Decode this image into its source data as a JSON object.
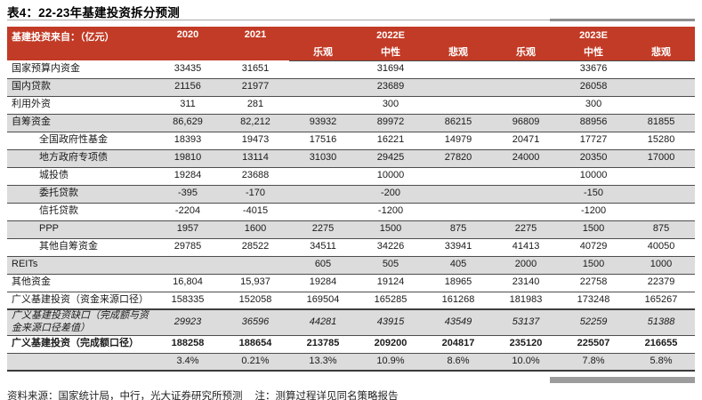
{
  "title": "表4：22-23年基建投资拆分预测",
  "colors": {
    "header_bg": "#C23B26",
    "row_shade": "#DCDCDC",
    "header_text": "#FFFFFF"
  },
  "table": {
    "header": {
      "label": "基建投资来自：（亿元）",
      "col_2020": "2020",
      "col_2021": "2021",
      "group_2022": "2022E",
      "group_2023": "2023E",
      "scenarios": [
        "乐观",
        "中性",
        "悲观",
        "乐观",
        "中性",
        "悲观"
      ]
    },
    "rows": [
      {
        "label": "国家预算内资金",
        "indent": false,
        "shaded": false,
        "values": [
          "33435",
          "31651",
          "",
          "31694",
          "",
          "",
          "33676",
          ""
        ]
      },
      {
        "label": "国内贷款",
        "indent": false,
        "shaded": true,
        "values": [
          "21156",
          "21977",
          "",
          "23689",
          "",
          "",
          "26058",
          ""
        ]
      },
      {
        "label": "利用外资",
        "indent": false,
        "shaded": false,
        "values": [
          "311",
          "281",
          "",
          "300",
          "",
          "",
          "300",
          ""
        ]
      },
      {
        "label": "自筹资金",
        "indent": false,
        "shaded": true,
        "values": [
          "86,629",
          "82,212",
          "93932",
          "89972",
          "86215",
          "96809",
          "88956",
          "81855"
        ]
      },
      {
        "label": "全国政府性基金",
        "indent": true,
        "shaded": false,
        "values": [
          "18393",
          "19473",
          "17516",
          "16221",
          "14979",
          "20471",
          "17727",
          "15280"
        ]
      },
      {
        "label": "地方政府专项债",
        "indent": true,
        "shaded": true,
        "values": [
          "19810",
          "13114",
          "31030",
          "29425",
          "27820",
          "24000",
          "20350",
          "17000"
        ]
      },
      {
        "label": "城投债",
        "indent": true,
        "shaded": false,
        "values": [
          "19284",
          "23688",
          "",
          "10000",
          "",
          "",
          "10000",
          ""
        ]
      },
      {
        "label": "委托贷款",
        "indent": true,
        "shaded": true,
        "values": [
          "-395",
          "-170",
          "",
          "-200",
          "",
          "",
          "-150",
          ""
        ]
      },
      {
        "label": "信托贷款",
        "indent": true,
        "shaded": false,
        "values": [
          "-2204",
          "-4015",
          "",
          "-1200",
          "",
          "",
          "-1200",
          ""
        ]
      },
      {
        "label": "PPP",
        "indent": true,
        "shaded": true,
        "values": [
          "1957",
          "1600",
          "2275",
          "1500",
          "875",
          "2275",
          "1500",
          "875"
        ]
      },
      {
        "label": "其他自筹资金",
        "indent": true,
        "shaded": false,
        "values": [
          "29785",
          "28522",
          "34511",
          "34226",
          "33941",
          "41413",
          "40729",
          "40050"
        ]
      },
      {
        "label": "REITs",
        "indent": false,
        "shaded": true,
        "values": [
          "",
          "",
          "605",
          "505",
          "405",
          "2000",
          "1500",
          "1000"
        ]
      },
      {
        "label": "其他资金",
        "indent": false,
        "shaded": false,
        "values": [
          "16,804",
          "15,937",
          "19284",
          "19124",
          "18965",
          "23140",
          "22758",
          "22379"
        ]
      },
      {
        "label": "广义基建投资（资金来源口径）",
        "indent": false,
        "shaded": false,
        "thick_border": true,
        "values": [
          "158335",
          "152058",
          "169504",
          "165285",
          "161268",
          "181983",
          "173248",
          "165267"
        ]
      },
      {
        "label": "广义基建投资缺口（完成额与资金来源口径差值）",
        "indent": false,
        "shaded": true,
        "italic": true,
        "values": [
          "29923",
          "36596",
          "44281",
          "43915",
          "43549",
          "53137",
          "52259",
          "51388"
        ]
      },
      {
        "label": "广义基建投资（完成额口径）",
        "indent": false,
        "shaded": false,
        "bold": true,
        "values": [
          "188258",
          "188654",
          "213785",
          "209200",
          "204817",
          "235120",
          "225507",
          "216655"
        ]
      },
      {
        "label": "",
        "indent": false,
        "shaded": true,
        "last": true,
        "values": [
          "3.4%",
          "0.21%",
          "13.3%",
          "10.9%",
          "8.6%",
          "10.0%",
          "7.8%",
          "5.8%"
        ]
      }
    ]
  },
  "footer": {
    "source": "资料来源：国家统计局，中行，光大证券研究所预测",
    "note": "注：测算过程详见同名策略报告"
  }
}
